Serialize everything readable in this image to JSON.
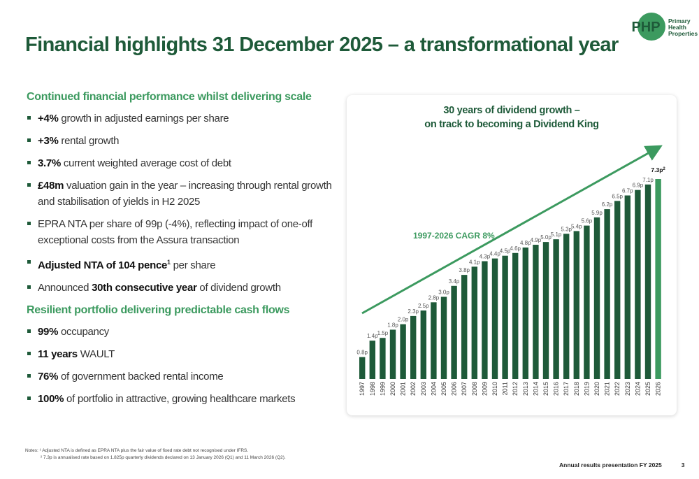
{
  "title": "Financial highlights 31 December 2025 – a transformational year",
  "logo": {
    "mark": "PHP",
    "lines": [
      "Primary",
      "Health",
      "Properties"
    ]
  },
  "left": {
    "section1_heading": "Continued financial performance whilst delivering scale",
    "section1_items": [
      {
        "bold": "+4%",
        "text": " growth in adjusted earnings per share"
      },
      {
        "bold": "+3%",
        "text": " rental growth"
      },
      {
        "bold": "3.7%",
        "text": " current weighted average cost of debt"
      },
      {
        "bold": "£48m",
        "text": " valuation gain in the year – increasing through rental growth and stabilisation of yields in H2 2025"
      },
      {
        "pre": "EPRA NTA per share of 99p (-4%), reflecting impact of one-off exceptional costs from the Assura transaction"
      },
      {
        "bold": "Adjusted NTA of 104 pence",
        "sup": "1",
        "text": " per share"
      },
      {
        "pre": "Announced ",
        "bold": "30th consecutive year",
        "text": " of dividend growth"
      }
    ],
    "section2_heading": "Resilient portfolio delivering predictable cash flows",
    "section2_items": [
      {
        "bold": "99%",
        "text": " occupancy"
      },
      {
        "bold": "11 years",
        "text": " WAULT"
      },
      {
        "bold": "76%",
        "text": " of government backed rental income"
      },
      {
        "bold": "100%",
        "text": " of portfolio in attractive, growing healthcare markets"
      }
    ]
  },
  "chart_title_line1": "30 years of dividend growth –",
  "chart_title_line2": "on track to becoming a Dividend King",
  "chart_data": {
    "type": "bar",
    "title": "30 years of dividend growth – on track to becoming a Dividend King",
    "categories": [
      "1997",
      "1998",
      "1999",
      "2000",
      "2001",
      "2002",
      "2003",
      "2004",
      "2005",
      "2006",
      "2007",
      "2008",
      "2009",
      "2010",
      "2011",
      "2012",
      "2013",
      "2014",
      "2015",
      "2016",
      "2017",
      "2018",
      "2019",
      "2020",
      "2021",
      "2022",
      "2023",
      "2024",
      "2025",
      "2026"
    ],
    "values": [
      0.8,
      1.4,
      1.5,
      1.8,
      2.0,
      2.3,
      2.5,
      2.8,
      3.0,
      3.4,
      3.8,
      4.1,
      4.3,
      4.4,
      4.5,
      4.6,
      4.8,
      4.9,
      5.0,
      5.1,
      5.3,
      5.4,
      5.6,
      5.9,
      6.2,
      6.5,
      6.7,
      6.9,
      7.1,
      7.3
    ],
    "labels": [
      "0.8p",
      "1.4p",
      "1.5p",
      "1.8p",
      "2.0p",
      "2.3p",
      "2.5p",
      "2.8p",
      "3.0p",
      "3.4p",
      "3.8p",
      "4.1p",
      "4.3p",
      "4.4p",
      "4.5p",
      "4.6p",
      "4.8p",
      "4.9p",
      "5.0p",
      "5.1p",
      "5.3p",
      "5.4p",
      "5.6p",
      "5.9p",
      "6.2p",
      "6.5p",
      "6.7p",
      "6.9p",
      "7.1p",
      "7.3p"
    ],
    "last_label_sup": "2",
    "annotation": "1997-2026 CAGR 8%",
    "bar_color": "#1e5a39",
    "highlight_color": "#3c9a5f",
    "arrow_color": "#3c9a5f",
    "grid": false,
    "yaxis_shown": false
  },
  "notes": {
    "line1": "Notes:  ¹ Adjusted NTA is defined as EPRA NTA plus the fair value of fixed rate debt not recognised under IFRS.",
    "line2": "² 7.3p is annualised rate based on 1.825p quarterly dividends declared on 13 January 2026 (Q1) and 11 March 2026 (Q2)."
  },
  "footer": {
    "text": "Annual results presentation FY 2025",
    "page": "3"
  }
}
